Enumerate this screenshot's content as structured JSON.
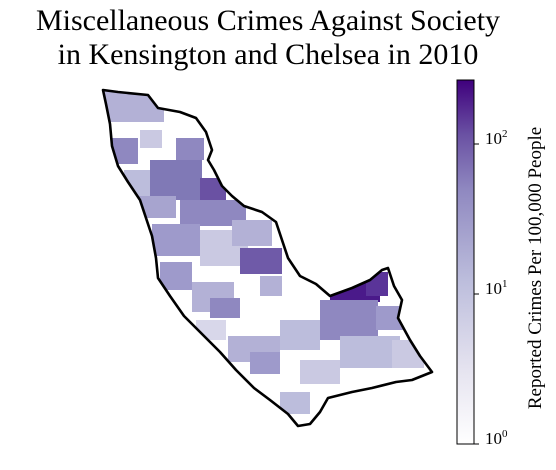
{
  "title_line1": "Miscellaneous Crimes Against Society",
  "title_line2": "in Kensington and Chelsea in 2010",
  "colorbar": {
    "label": "Reported Crimes Per 100,000 People",
    "scale": "log",
    "range": [
      1,
      250
    ],
    "ticks": [
      {
        "base": "10",
        "exp": "0",
        "value": 1
      },
      {
        "base": "10",
        "exp": "1",
        "value": 10
      },
      {
        "base": "10",
        "exp": "2",
        "value": 100
      }
    ],
    "colors": {
      "low": "#f2f0f7",
      "high": "#3f007d"
    }
  }
}
